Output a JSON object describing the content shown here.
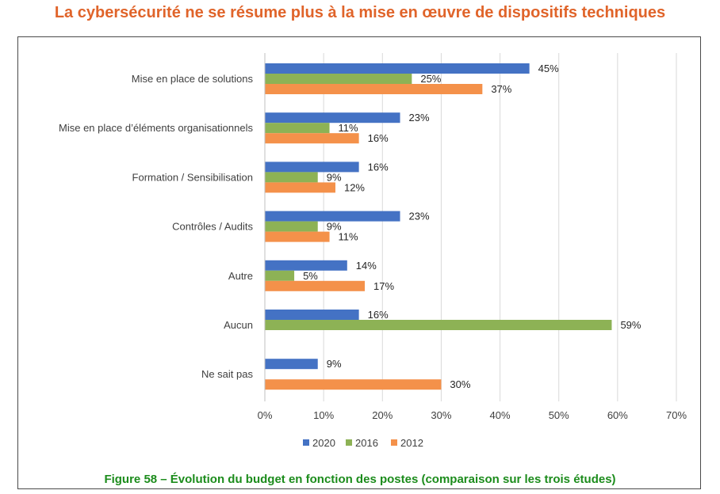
{
  "title": "La cybersécurité ne se résume plus à la mise en œuvre de dispositifs techniques",
  "caption": "Figure 58 – Évolution du budget en fonction des postes (comparaison sur les trois études)",
  "chart_data": {
    "type": "bar",
    "orientation": "horizontal",
    "categories": [
      "Mise en place de solutions",
      "Mise en place d’éléments organisationnels",
      "Formation / Sensibilisation",
      "Contrôles / Audits",
      "Autre",
      "Aucun",
      "Ne sait pas"
    ],
    "series": [
      {
        "name": "2020",
        "color": "#4472C4",
        "values": [
          45,
          23,
          16,
          23,
          14,
          16,
          9
        ]
      },
      {
        "name": "2016",
        "color": "#8DB255",
        "values": [
          25,
          11,
          9,
          9,
          5,
          59,
          null
        ]
      },
      {
        "name": "2012",
        "color": "#F4914A",
        "values": [
          37,
          16,
          12,
          11,
          17,
          null,
          30
        ]
      }
    ],
    "xlim": [
      0,
      70
    ],
    "xticks": [
      0,
      10,
      20,
      30,
      40,
      50,
      60,
      70
    ],
    "value_suffix": "%",
    "grid": true,
    "legend": "bottom"
  }
}
